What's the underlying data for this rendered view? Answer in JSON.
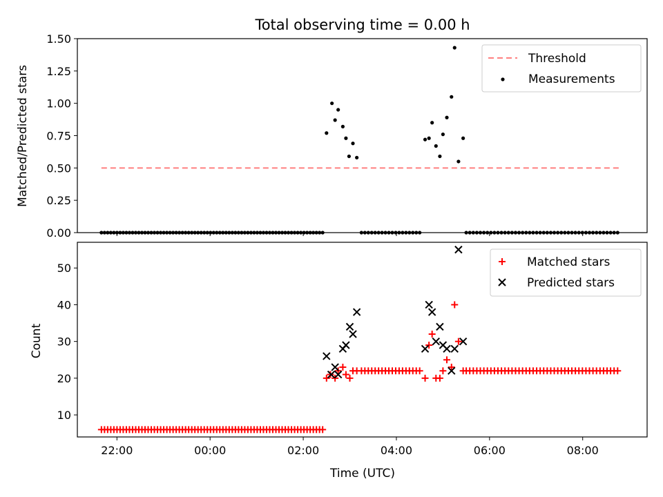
{
  "figure": {
    "title": "Total observing time = 0.00 h",
    "xlabel": "Time (UTC)",
    "xticks": [
      {
        "label": "22:00",
        "hour": 22
      },
      {
        "label": "00:00",
        "hour": 24
      },
      {
        "label": "02:00",
        "hour": 26
      },
      {
        "label": "04:00",
        "hour": 28
      },
      {
        "label": "06:00",
        "hour": 30
      },
      {
        "label": "08:00",
        "hour": 32
      }
    ],
    "xlim": [
      "21:09",
      "09:23"
    ],
    "colors": {
      "threshold": "#ff7f7f",
      "measurement": "#000000",
      "matched": "#ff0000",
      "predicted": "#000000"
    }
  },
  "chart_data": [
    {
      "type": "scatter",
      "ylabel": "Matched/Predicted stars",
      "ylim": [
        0,
        1.5
      ],
      "yticks": [
        "0.00",
        "0.25",
        "0.50",
        "0.75",
        "1.00",
        "1.25",
        "1.50"
      ],
      "legend": {
        "position": "top-right",
        "entries": [
          "Threshold",
          "Measurements"
        ]
      },
      "series": [
        {
          "name": "Threshold",
          "kind": "dashed-line",
          "x": [
            "21:40",
            "08:47"
          ],
          "y": [
            0.5,
            0.5
          ]
        },
        {
          "name": "Measurements",
          "kind": "points",
          "zero_ranges": [
            [
              "21:40",
              "02:25",
              72
            ],
            [
              "03:15",
              "04:30",
              18
            ],
            [
              "05:30",
              "08:45",
              44
            ]
          ],
          "x": [
            "02:30",
            "02:37",
            "02:41",
            "02:45",
            "02:51",
            "02:55",
            "02:59",
            "03:04",
            "03:09",
            "04:37",
            "04:42",
            "04:46",
            "04:51",
            "04:56",
            "05:00",
            "05:05",
            "05:11",
            "05:15",
            "05:20",
            "05:26"
          ],
          "y": [
            0.77,
            1.0,
            0.87,
            0.95,
            0.82,
            0.73,
            0.59,
            0.69,
            0.58,
            0.72,
            0.73,
            0.85,
            0.67,
            0.59,
            0.76,
            0.89,
            1.05,
            1.43,
            0.55,
            0.73
          ]
        }
      ]
    },
    {
      "type": "scatter",
      "ylabel": "Count",
      "ylim": [
        4,
        57
      ],
      "yticks": [
        "10",
        "20",
        "30",
        "40",
        "50"
      ],
      "legend": {
        "position": "top-right",
        "entries": [
          "Matched stars",
          "Predicted stars"
        ]
      },
      "series": [
        {
          "name": "Matched stars",
          "marker": "plus",
          "constant_ranges": [
            [
              "21:40",
              "02:25",
              72,
              6
            ],
            [
              "03:15",
              "04:30",
              18,
              22
            ],
            [
              "05:30",
              "08:45",
              44,
              22
            ]
          ],
          "x": [
            "02:30",
            "02:35",
            "02:41",
            "02:45",
            "02:51",
            "02:55",
            "03:00",
            "03:04",
            "03:09",
            "04:37",
            "04:42",
            "04:46",
            "04:51",
            "04:56",
            "05:00",
            "05:05",
            "05:11",
            "05:15",
            "05:20",
            "05:26"
          ],
          "y": [
            20,
            21,
            20,
            22,
            23,
            21,
            20,
            22,
            22,
            20,
            29,
            32,
            20,
            20,
            22,
            25,
            23,
            40,
            30,
            22
          ]
        },
        {
          "name": "Predicted stars",
          "marker": "x",
          "x": [
            "02:30",
            "02:36",
            "02:41",
            "02:45",
            "02:51",
            "02:55",
            "03:00",
            "03:04",
            "03:09",
            "04:37",
            "04:42",
            "04:46",
            "04:51",
            "04:56",
            "05:00",
            "05:05",
            "05:11",
            "05:15",
            "05:20",
            "05:26"
          ],
          "y": [
            26,
            21,
            23,
            21,
            28,
            29,
            34,
            32,
            38,
            28,
            40,
            38,
            30,
            34,
            29,
            28,
            22,
            28,
            55,
            30
          ]
        }
      ]
    }
  ]
}
